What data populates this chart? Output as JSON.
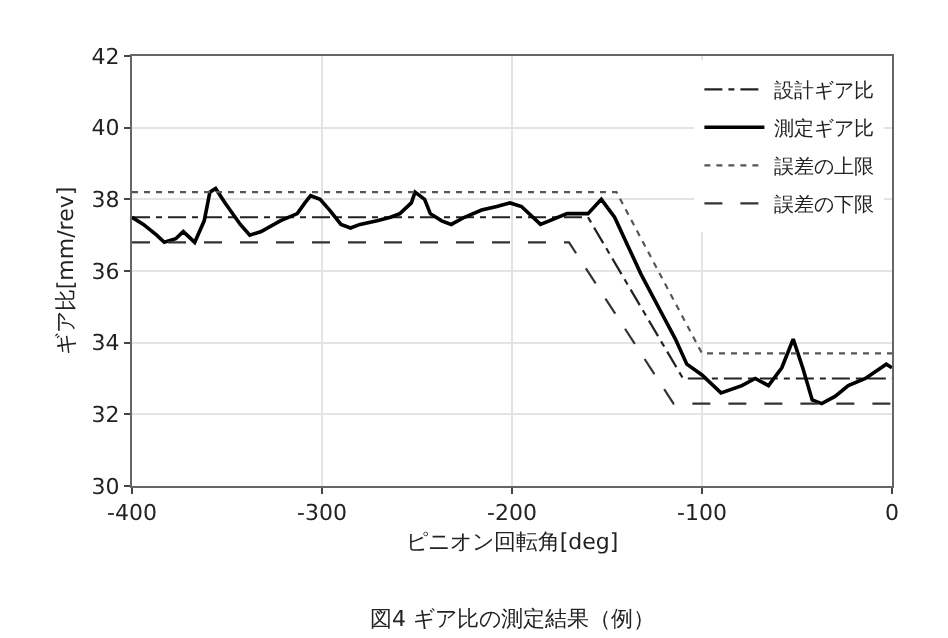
{
  "chart_data": {
    "type": "line",
    "title": "図4 ギア比の測定結果（例）",
    "xlabel": "ピニオン回転角[deg]",
    "ylabel": "ギア比[mm/rev]",
    "xlim": [
      -400,
      0
    ],
    "xticks": [
      -400,
      -300,
      -200,
      -100,
      0
    ],
    "ylim": [
      30,
      42
    ],
    "yticks": [
      30,
      32,
      34,
      36,
      38,
      40,
      42
    ],
    "grid": true,
    "legend": "top right",
    "marker": "none",
    "series": [
      {
        "name": "設計ギア比",
        "color": "#222222",
        "line_style": "dashdot",
        "x": [
          -400,
          -160,
          -110,
          0
        ],
        "values": [
          37.5,
          37.5,
          33.0,
          33.0
        ]
      },
      {
        "name": "測定ギア比",
        "color": "#000000",
        "line_style": "solid",
        "x": [
          -400,
          -394,
          -387,
          -383,
          -377,
          -373,
          -367,
          -362,
          -359,
          -356,
          -351,
          -343,
          -338,
          -332,
          -322,
          -313,
          -309,
          -306,
          -301,
          -296,
          -290,
          -285,
          -280,
          -271,
          -264,
          -259,
          -253,
          -251,
          -246,
          -243,
          -237,
          -232,
          -225,
          -216,
          -208,
          -201,
          -195,
          -185,
          -171,
          -160,
          -153,
          -146,
          -139,
          -132,
          -121,
          -114,
          -108,
          -100,
          -90,
          -79,
          -72,
          -65,
          -58,
          -52,
          -47,
          -42,
          -37,
          -30,
          -23,
          -14,
          -3,
          0
        ],
        "values": [
          37.5,
          37.3,
          37.0,
          36.8,
          36.9,
          37.1,
          36.8,
          37.4,
          38.2,
          38.3,
          37.9,
          37.3,
          37.0,
          37.1,
          37.4,
          37.6,
          37.9,
          38.1,
          38.0,
          37.7,
          37.3,
          37.2,
          37.3,
          37.4,
          37.5,
          37.6,
          37.9,
          38.2,
          38.0,
          37.6,
          37.4,
          37.3,
          37.5,
          37.7,
          37.8,
          37.9,
          37.8,
          37.3,
          37.6,
          37.6,
          38.0,
          37.5,
          36.7,
          35.9,
          34.8,
          34.1,
          33.4,
          33.1,
          32.6,
          32.8,
          33.0,
          32.8,
          33.3,
          34.1,
          33.3,
          32.4,
          32.3,
          32.5,
          32.8,
          33.0,
          33.4,
          33.3
        ]
      },
      {
        "name": "誤差の上限",
        "color": "#555555",
        "line_style": "dotted",
        "x": [
          -400,
          -145,
          -100,
          0
        ],
        "values": [
          38.2,
          38.2,
          33.7,
          33.7
        ]
      },
      {
        "name": "誤差の下限",
        "color": "#333333",
        "line_style": "dashed",
        "x": [
          -400,
          -170,
          -115,
          0
        ],
        "values": [
          36.8,
          36.8,
          32.3,
          32.3
        ]
      }
    ]
  }
}
